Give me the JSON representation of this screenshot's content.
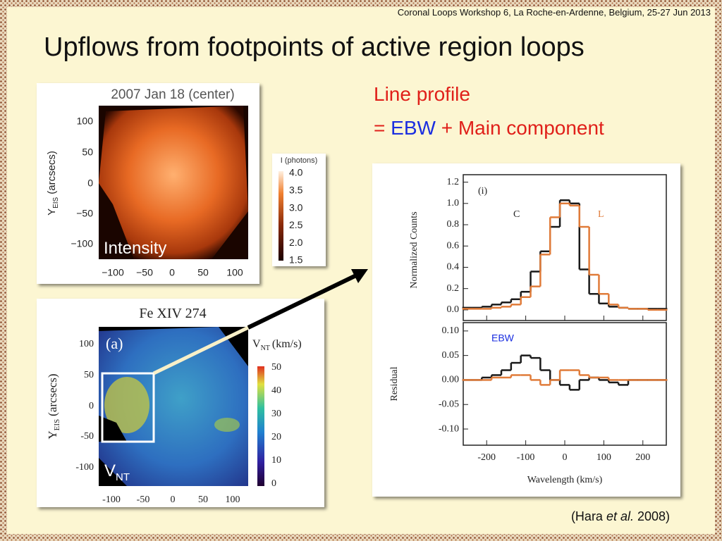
{
  "header": {
    "workshop": "Coronal Loops Workshop 6, La Roche-en-Ardenne, Belgium, 25-27 Jun 2013",
    "title": "Upflows from footpoints of active region loops"
  },
  "caption": {
    "line1": "Line profile",
    "eq": "=",
    "ebw": "EBW",
    "rest": "+ Main component"
  },
  "citation": {
    "open": "(Hara",
    "etal": "et al.",
    "year": "2008)"
  },
  "intensity_map": {
    "title": "2007 Jan 18 (center)",
    "ylabel": "Y",
    "ylabel_sub": "EIS",
    "ylabel_unit": "(arcsecs)",
    "yticks": [
      "100",
      "50",
      "0",
      "−50",
      "−100"
    ],
    "xticks": [
      "−100",
      "−50",
      "0",
      "50",
      "100"
    ],
    "label": "Intensity",
    "colorbar": {
      "title": "I (photons)",
      "ticks": [
        "4.0",
        "3.5",
        "3.0",
        "2.5",
        "2.0",
        "1.5"
      ]
    }
  },
  "vnt_map": {
    "title": "Fe XIV 274",
    "panel": "(a)",
    "ylabel": "Y",
    "ylabel_sub": "EIS",
    "ylabel_unit": "(arcsecs)",
    "yticks": [
      "100",
      "50",
      "0",
      "-50",
      "-100"
    ],
    "xticks": [
      "-100",
      "-50",
      "0",
      "50",
      "100"
    ],
    "label": "V",
    "label_sub": "NT",
    "colorbar": {
      "title": "V",
      "title_sub": "NT",
      "title_unit": "(km/s)",
      "ticks": [
        "50",
        "40",
        "30",
        "20",
        "10",
        "0"
      ]
    }
  },
  "chart_data": {
    "type": "step",
    "panel": "(i)",
    "annotation_c": "C",
    "annotation_l": "L",
    "annotation_ebw": "EBW",
    "xlabel": "Wavelength (km/s)",
    "ylabel": "Normalized Counts",
    "y2label": "Residual",
    "xlim": [
      -260,
      260
    ],
    "xticks": [
      -200,
      -100,
      0,
      100,
      200
    ],
    "ylim": [
      -0.1,
      1.27
    ],
    "yticks": [
      {
        "value": 0,
        "label": "0.0"
      },
      0.2,
      0.4,
      0.6,
      0.8,
      {
        "value": 1,
        "label": "1.0"
      },
      1.2
    ],
    "y2lim": [
      -0.133,
      0.117
    ],
    "y2ticks": [
      {
        "value": -0.1,
        "label": "-0.10"
      },
      {
        "value": -0.05,
        "label": "-0.05"
      },
      {
        "value": 0,
        "label": "0.00"
      },
      {
        "value": 0.05,
        "label": "0.05"
      },
      {
        "value": 0.1,
        "label": "0.10"
      }
    ],
    "x": [
      -250,
      -225,
      -200,
      -175,
      -150,
      -125,
      -100,
      -75,
      -50,
      -25,
      0,
      25,
      50,
      75,
      100,
      125,
      150,
      175,
      200,
      225,
      250
    ],
    "series": [
      {
        "color": "#1a1a1a",
        "values": [
          0.02,
          0.02,
          0.03,
          0.05,
          0.07,
          0.1,
          0.17,
          0.36,
          0.55,
          0.78,
          1.03,
          1.0,
          0.38,
          0.15,
          0.06,
          0.03,
          0.02,
          0.01,
          0.01,
          0.01,
          0.01
        ]
      },
      {
        "color": "#e07b39",
        "values": [
          0.01,
          0.01,
          0.01,
          0.02,
          0.03,
          0.05,
          0.12,
          0.22,
          0.52,
          0.87,
          1.0,
          0.98,
          0.78,
          0.33,
          0.15,
          0.05,
          0.02,
          0.01,
          0.01,
          0.0,
          0.0
        ]
      },
      {
        "color": "#1a1a1a",
        "axis": "y2",
        "values": [
          0,
          0,
          0.005,
          0.01,
          0.02,
          0.035,
          0.05,
          0.045,
          0.02,
          0,
          -0.01,
          -0.02,
          0,
          0.005,
          0,
          -0.005,
          -0.01,
          0,
          0,
          0,
          0
        ]
      },
      {
        "color": "#e07b39",
        "axis": "y2",
        "values": [
          0,
          0,
          0,
          0.005,
          0.005,
          0.01,
          0.01,
          0,
          -0.01,
          0,
          0.02,
          0.02,
          0.01,
          0.005,
          0.005,
          0,
          0,
          0,
          0,
          0,
          0
        ]
      }
    ]
  }
}
